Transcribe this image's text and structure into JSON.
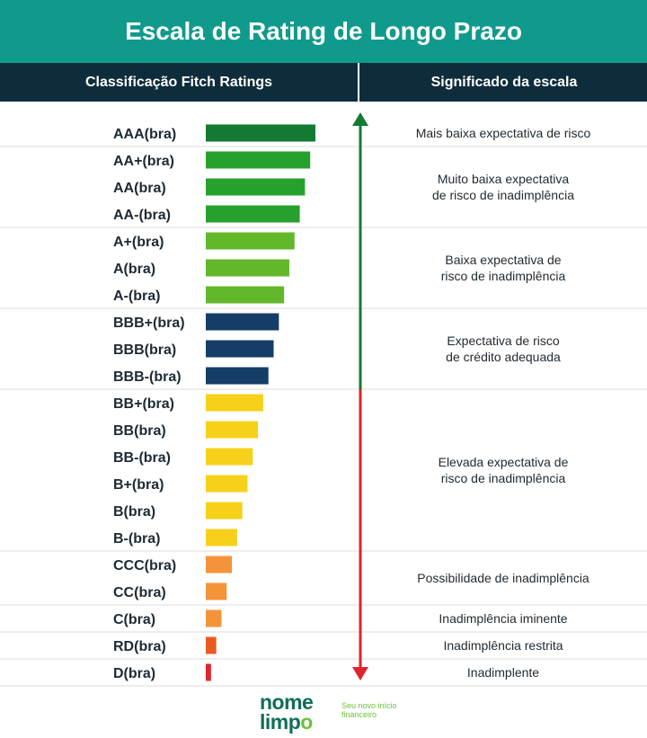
{
  "title": "Escala de Rating de Longo Prazo",
  "header": {
    "left_label": "Classificação Fitch Ratings",
    "right_label": "Significado da escala"
  },
  "chart_data": {
    "type": "bar",
    "orientation": "horizontal",
    "categories": [
      "AAA(bra)",
      "AA+(bra)",
      "AA(bra)",
      "AA-(bra)",
      "A+(bra)",
      "A(bra)",
      "A-(bra)",
      "BBB+(bra)",
      "BBB(bra)",
      "BBB-(bra)",
      "BB+(bra)",
      "BB(bra)",
      "BB-(bra)",
      "B+(bra)",
      "B(bra)",
      "B-(bra)",
      "CCC(bra)",
      "CC(bra)",
      "C(bra)",
      "RD(bra)",
      "D(bra)"
    ],
    "values": [
      21,
      20,
      19,
      18,
      17,
      16,
      15,
      14,
      13,
      12,
      11,
      10,
      9,
      8,
      7,
      6,
      5,
      4,
      3,
      2,
      1
    ],
    "colors": [
      "#137a33",
      "#26a12e",
      "#26a12e",
      "#26a12e",
      "#63b72b",
      "#63b72b",
      "#63b72b",
      "#143e66",
      "#143e66",
      "#143e66",
      "#f7d01a",
      "#f7d01a",
      "#f7d01a",
      "#f7d01a",
      "#f7d01a",
      "#f7d01a",
      "#f5933a",
      "#f5933a",
      "#f5933a",
      "#e85a22",
      "#e0232c"
    ],
    "groups": [
      {
        "label": "Mais baixa expectativa de risco",
        "start": 0,
        "end": 0
      },
      {
        "label": "Muito baixa expectativa de risco de inadimplência",
        "lines": [
          "Muito baixa expectativa",
          "de risco de inadimplência"
        ],
        "start": 1,
        "end": 3
      },
      {
        "label": "Baixa expectativa de risco de inadimplência",
        "lines": [
          "Baixa expectativa de",
          "risco de inadimplência"
        ],
        "start": 4,
        "end": 6
      },
      {
        "label": "Expectativa de risco de crédito adequada",
        "lines": [
          "Expectativa de risco",
          "de crédito adequada"
        ],
        "start": 7,
        "end": 9
      },
      {
        "label": "Elevada expectativa de risco de inadimplência",
        "lines": [
          "Elevada expectativa de",
          "risco de inadimplência"
        ],
        "start": 10,
        "end": 15
      },
      {
        "label": "Possibilidade de inadimplência",
        "start": 16,
        "end": 17
      },
      {
        "label": "Inadimplência iminente",
        "start": 18,
        "end": 18
      },
      {
        "label": "Inadimplência restrita",
        "start": 19,
        "end": 19
      },
      {
        "label": "Inadimplente",
        "start": 20,
        "end": 20
      }
    ],
    "arrow_colors": {
      "upper": "#137a33",
      "lower": "#e0232c"
    },
    "arrow_split_after_index": 9
  },
  "logo": {
    "line1": "nome",
    "line2": "limp",
    "accent": "o",
    "tagline_1": "Seu novo início",
    "tagline_2": "financeiro"
  }
}
